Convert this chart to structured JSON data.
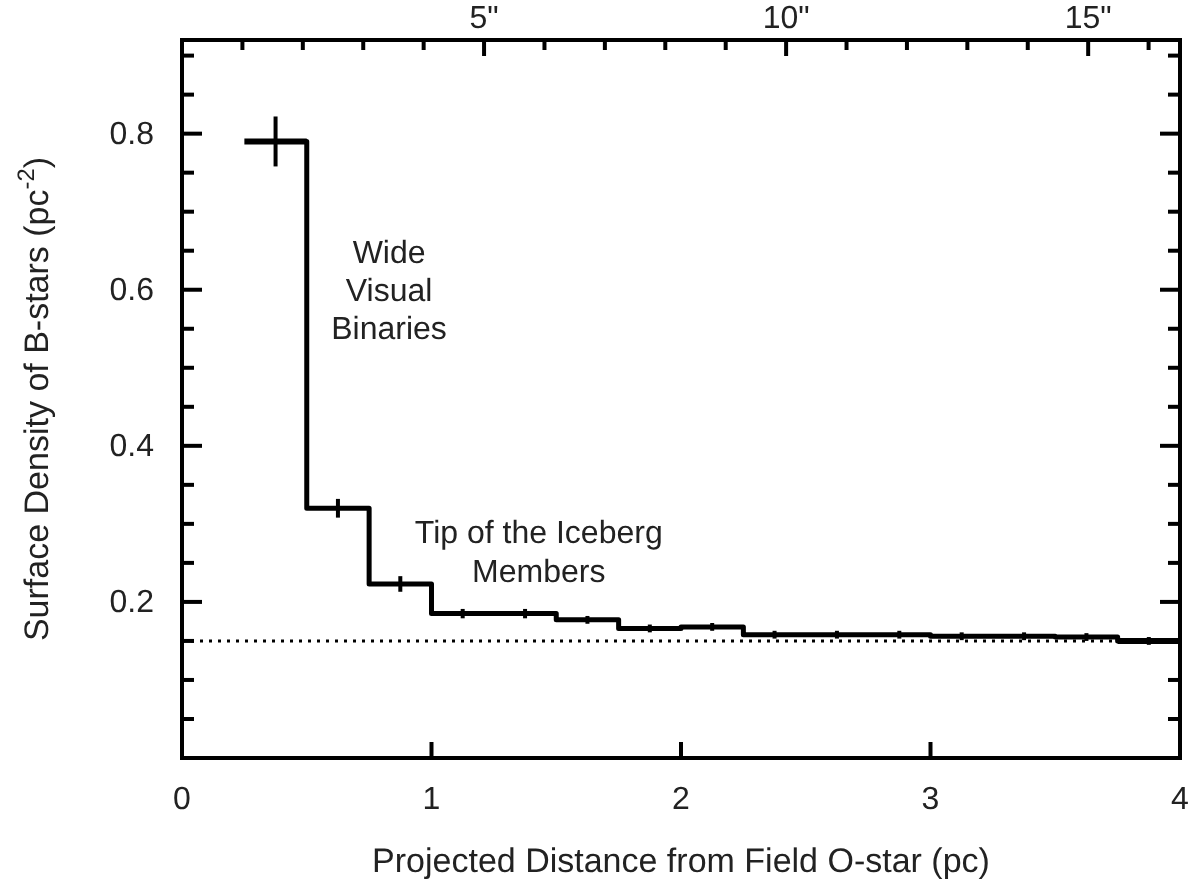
{
  "chart_data": {
    "type": "step",
    "xlabel": "Projected Distance from Field O-star (pc)",
    "ylabel": "Surface Density of B-stars (pc$^{-2}$)",
    "x": [
      0.375,
      0.625,
      0.875,
      1.125,
      1.375,
      1.625,
      1.875,
      2.125,
      2.375,
      2.625,
      2.875,
      3.125,
      3.375,
      3.625,
      3.875
    ],
    "series": [
      {
        "color": "#000000",
        "values": [
          0.79,
          0.32,
          0.223,
          0.185,
          0.185,
          0.177,
          0.166,
          0.168,
          0.158,
          0.158,
          0.158,
          0.156,
          0.156,
          0.155,
          0.15
        ],
        "xerrors": [
          0.125,
          null,
          null,
          null,
          null,
          null,
          null,
          null,
          null,
          null,
          null,
          null,
          null,
          null,
          0.125
        ],
        "errors": [
          0.032,
          0.012,
          0.01,
          0.006,
          0.006,
          0.005,
          0.005,
          0.005,
          0.005,
          0.005,
          0.005,
          0.005,
          0.005,
          0.005,
          0.005
        ]
      }
    ],
    "xlim": [
      0,
      4
    ],
    "xticks": [
      0,
      1,
      2,
      3,
      4
    ],
    "ylim": [
      0,
      0.92
    ],
    "yticks": [
      {
        "value": 0.05,
        "label": null
      },
      {
        "value": 0.1,
        "label": null
      },
      {
        "value": 0.15,
        "label": null
      },
      0.2,
      {
        "value": 0.25,
        "label": null
      },
      {
        "value": 0.3,
        "label": null
      },
      {
        "value": 0.35,
        "label": null
      },
      0.4,
      {
        "value": 0.45,
        "label": null
      },
      {
        "value": 0.5,
        "label": null
      },
      {
        "value": 0.55,
        "label": null
      },
      0.6,
      {
        "value": 0.65,
        "label": null
      },
      {
        "value": 0.7,
        "label": null
      },
      {
        "value": 0.75,
        "label": null
      },
      0.8,
      {
        "value": 0.85,
        "label": null
      },
      {
        "value": 0.9,
        "label": null
      }
    ],
    "x2lim": [
      0,
      16.52
    ],
    "x2ticks": [
      {
        "value": 1,
        "label": null
      },
      {
        "value": 2,
        "label": null
      },
      {
        "value": 3,
        "label": null
      },
      {
        "value": 4,
        "label": null
      },
      {
        "value": 5,
        "label": "5\""
      },
      {
        "value": 6,
        "label": null
      },
      {
        "value": 7,
        "label": null
      },
      {
        "value": 8,
        "label": null
      },
      {
        "value": 9,
        "label": null
      },
      {
        "value": 10,
        "label": "10\""
      },
      {
        "value": 11,
        "label": null
      },
      {
        "value": 12,
        "label": null
      },
      {
        "value": 13,
        "label": null
      },
      {
        "value": 14,
        "label": null
      },
      {
        "value": 15,
        "label": "15\""
      },
      {
        "value": 16,
        "label": null
      }
    ],
    "ref_lines": [
      {
        "axis": "y",
        "value": 0.15,
        "color": "#000000",
        "line_style": "dotted"
      }
    ],
    "annotations": [
      "Wide\nVisual\nBinaries",
      "Tip of the Iceberg\nMembers"
    ],
    "grid": false,
    "marker": "none",
    "line_style": "solid"
  }
}
